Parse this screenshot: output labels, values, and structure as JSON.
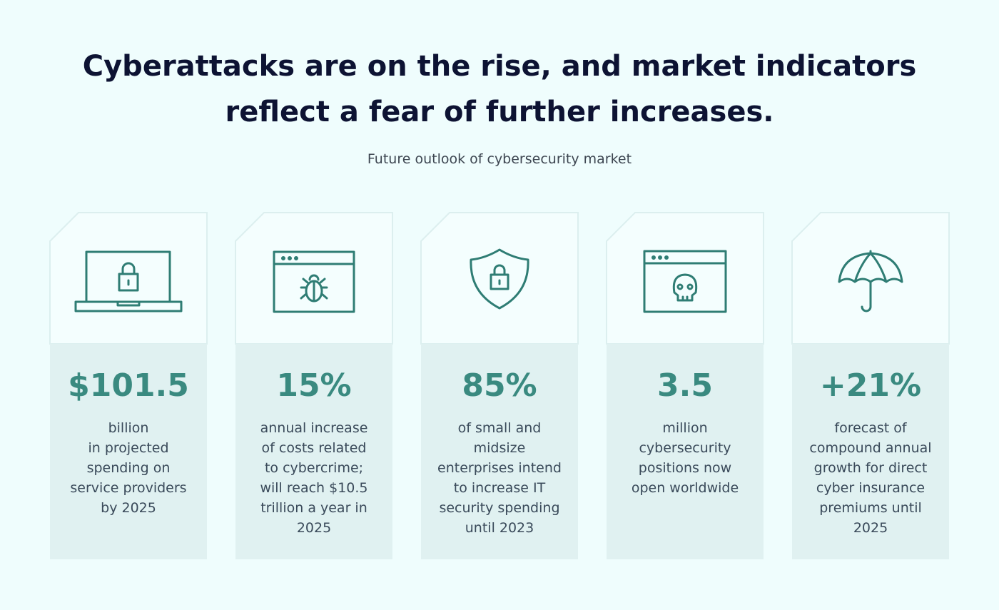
{
  "header": {
    "title_lines": [
      "Cyberattacks are on the rise, and market indicators",
      "reflect a fear of further increases."
    ],
    "subtitle": "Future outlook of cybersecurity market"
  },
  "cards": [
    {
      "value": "$101.5",
      "lines": [
        "billion",
        "in projected",
        "spending on",
        "service providers",
        "by 2025"
      ]
    },
    {
      "value": "15%",
      "lines": [
        "annual increase",
        "of costs related",
        "to cybercrime;",
        "will reach $10.5",
        "trillion a year in",
        "2025"
      ]
    },
    {
      "value": "85%",
      "lines": [
        "of small and",
        "midsize",
        "enterprises intend",
        "to increase IT",
        "security spending",
        "until 2023"
      ]
    },
    {
      "value": "3.5",
      "lines": [
        "million",
        "cybersecurity",
        "positions now",
        "open worldwide"
      ]
    },
    {
      "value": "+21%",
      "lines": [
        "forecast of",
        "compound annual",
        "growth for direct",
        "cyber insurance",
        "premiums until",
        "2025"
      ]
    }
  ]
}
